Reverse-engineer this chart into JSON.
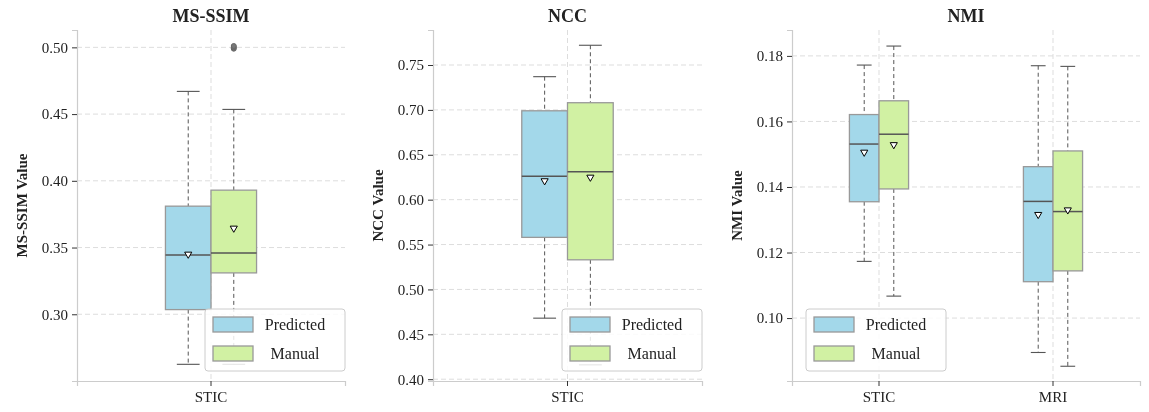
{
  "chart_data": [
    {
      "type": "box",
      "title": "MS-SSIM",
      "ylabel": "MS-SSIM Value",
      "categories": [
        "STIC"
      ],
      "ylim": [
        0.25,
        0.513
      ],
      "yticks": [
        {
          "value": 0.3,
          "label": "0.30"
        },
        0.35,
        {
          "value": 0.4,
          "label": "0.40"
        },
        0.45,
        {
          "value": 0.5,
          "label": "0.50"
        }
      ],
      "grid": true,
      "legend": "bottom right",
      "series": [
        {
          "name": "Predicted",
          "color": "#a3d8ea",
          "boxes": [
            {
              "low": 0.2625,
              "q1": 0.3035,
              "median": 0.3445,
              "q3": 0.381,
              "high": 0.467,
              "mean": 0.345
            }
          ]
        },
        {
          "name": "Manual",
          "color": "#d1f1a3",
          "boxes": [
            {
              "low": 0.2625,
              "q1": 0.331,
              "median": 0.346,
              "q3": 0.393,
              "high": 0.4535,
              "mean": 0.3645,
              "outliers": [
                0.499,
                0.5,
                0.501
              ]
            }
          ]
        }
      ]
    },
    {
      "type": "box",
      "title": "NCC",
      "ylabel": "NCC Value",
      "categories": [
        "STIC"
      ],
      "ylim": [
        0.398,
        0.789
      ],
      "yticks": [
        {
          "value": 0.4,
          "label": "0.40"
        },
        0.45,
        {
          "value": 0.5,
          "label": "0.50"
        },
        0.55,
        {
          "value": 0.6,
          "label": "0.60"
        },
        0.65,
        {
          "value": 0.7,
          "label": "0.70"
        },
        0.75
      ],
      "grid": true,
      "legend": "bottom right",
      "series": [
        {
          "name": "Predicted",
          "color": "#a3d8ea",
          "boxes": [
            {
              "low": 0.468,
              "q1": 0.558,
              "median": 0.626,
              "q3": 0.699,
              "high": 0.737,
              "mean": 0.621
            }
          ]
        },
        {
          "name": "Manual",
          "color": "#d1f1a3",
          "boxes": [
            {
              "low": 0.416,
              "q1": 0.533,
              "median": 0.631,
              "q3": 0.708,
              "high": 0.772,
              "mean": 0.625
            }
          ]
        }
      ]
    },
    {
      "type": "box",
      "title": "NMI",
      "ylabel": "NMI Value",
      "categories": [
        "STIC",
        "MRI"
      ],
      "ylim": [
        0.0808,
        0.1879
      ],
      "yticks": [
        {
          "value": 0.1,
          "label": "0.10"
        },
        0.12,
        0.14,
        0.16,
        0.18
      ],
      "grid": true,
      "legend": "bottom left",
      "series": [
        {
          "name": "Predicted",
          "color": "#a3d8ea",
          "boxes": [
            {
              "low": 0.1173,
              "q1": 0.1355,
              "median": 0.1531,
              "q3": 0.1621,
              "high": 0.1772,
              "mean": 0.1506
            },
            {
              "low": 0.0895,
              "q1": 0.1111,
              "median": 0.1356,
              "q3": 0.1462,
              "high": 0.177,
              "mean": 0.1316
            }
          ]
        },
        {
          "name": "Manual",
          "color": "#d1f1a3",
          "boxes": [
            {
              "low": 0.1067,
              "q1": 0.1394,
              "median": 0.1561,
              "q3": 0.1663,
              "high": 0.183,
              "mean": 0.1529
            },
            {
              "low": 0.0853,
              "q1": 0.1144,
              "median": 0.1325,
              "q3": 0.151,
              "high": 0.1768,
              "mean": 0.133
            }
          ]
        }
      ]
    }
  ]
}
